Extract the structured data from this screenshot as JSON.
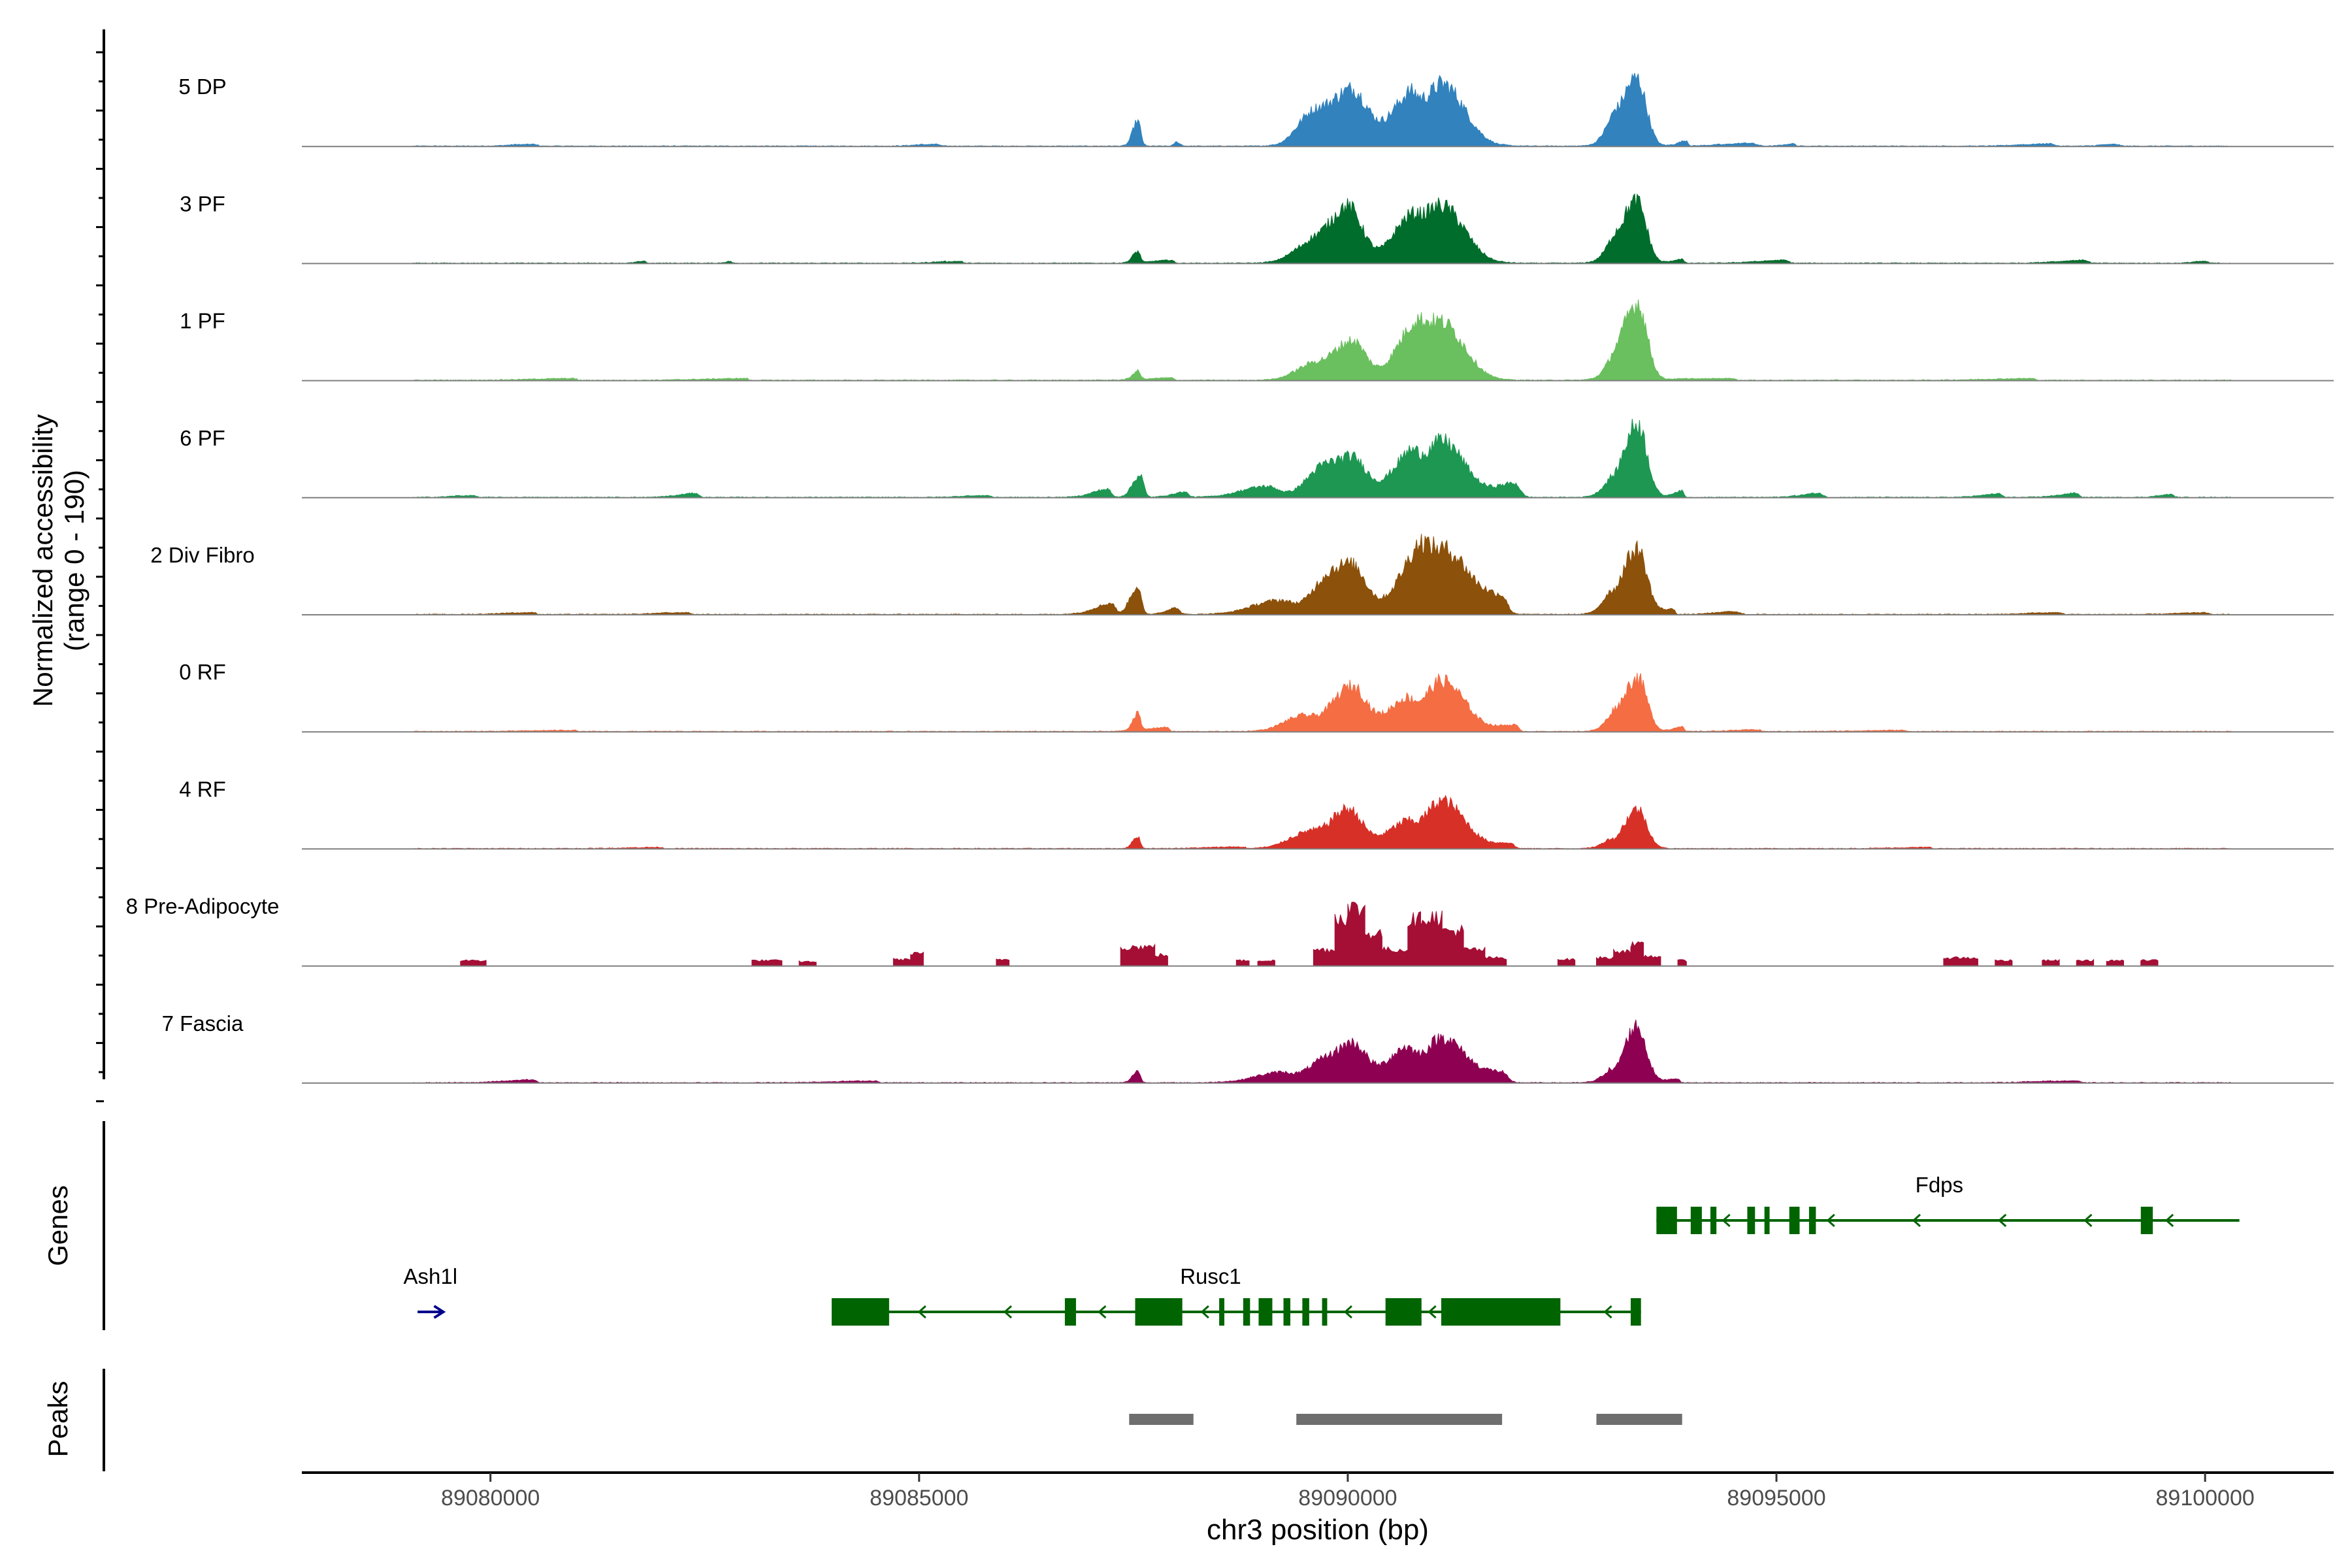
{
  "chart_data": {
    "type": "area",
    "title": "",
    "y_axis_label_line1": "Normalized accessibility",
    "y_axis_label_line2": "(range 0 - 190)",
    "y_range": [
      0,
      190
    ],
    "x_axis_label": "chr3 position (bp)",
    "x_range": [
      89077800,
      89101500
    ],
    "x_ticks": [
      "89080000",
      "89085000",
      "89090000",
      "89095000",
      "89100000"
    ],
    "x_tick_values": [
      89080000,
      89085000,
      89090000,
      89095000,
      89100000
    ],
    "baseline_color": "#7f7f7f",
    "series": [
      {
        "name": "5 DP",
        "color": "#3182bd",
        "mode": "smooth",
        "peaks": [
          [
            89087550,
            60,
            35,
            45
          ],
          [
            89088000,
            25,
            40,
            8
          ],
          [
            89089550,
            170,
            160,
            40
          ],
          [
            89090050,
            280,
            180,
            100
          ],
          [
            89090700,
            220,
            120,
            80
          ],
          [
            89091100,
            200,
            260,
            110
          ],
          [
            89093100,
            110,
            40,
            18
          ],
          [
            89093370,
            190,
            110,
            120
          ],
          [
            89093950,
            100,
            20,
            10
          ],
          [
            89094700,
            300,
            60,
            6
          ],
          [
            89095200,
            100,
            20,
            5
          ],
          [
            89085200,
            200,
            35,
            4
          ],
          [
            89080500,
            220,
            40,
            4
          ],
          [
            89098200,
            300,
            40,
            5
          ],
          [
            89098950,
            140,
            40,
            4
          ]
        ]
      },
      {
        "name": "3 PF",
        "color": "#006d2c",
        "mode": "smooth",
        "peaks": [
          [
            89087550,
            60,
            30,
            20
          ],
          [
            89087950,
            250,
            20,
            6
          ],
          [
            89089550,
            210,
            160,
            30
          ],
          [
            89090000,
            220,
            170,
            100
          ],
          [
            89090700,
            200,
            150,
            70
          ],
          [
            89091100,
            200,
            260,
            100
          ],
          [
            89093100,
            110,
            40,
            12
          ],
          [
            89093370,
            190,
            110,
            110
          ],
          [
            89093900,
            110,
            20,
            8
          ],
          [
            89095100,
            300,
            40,
            6
          ],
          [
            89085500,
            250,
            10,
            4
          ],
          [
            89081800,
            80,
            15,
            4
          ],
          [
            89082800,
            60,
            15,
            3
          ],
          [
            89098600,
            300,
            35,
            6
          ],
          [
            89100000,
            120,
            30,
            4
          ]
        ]
      },
      {
        "name": "1 PF",
        "color": "#6abf5e",
        "mode": "smooth",
        "peaks": [
          [
            89087550,
            60,
            30,
            15
          ],
          [
            89087950,
            300,
            20,
            5
          ],
          [
            89089550,
            200,
            150,
            22
          ],
          [
            89090050,
            240,
            160,
            70
          ],
          [
            89090750,
            210,
            140,
            80
          ],
          [
            89091100,
            200,
            260,
            100
          ],
          [
            89093100,
            110,
            30,
            8
          ],
          [
            89093380,
            190,
            110,
            135
          ],
          [
            89094500,
            600,
            20,
            4
          ],
          [
            89083000,
            500,
            10,
            3
          ],
          [
            89081000,
            500,
            10,
            3
          ],
          [
            89098000,
            500,
            15,
            3
          ]
        ]
      },
      {
        "name": "6 PF",
        "color": "#1d9752",
        "mode": "smooth",
        "peaks": [
          [
            89087200,
            180,
            40,
            15
          ],
          [
            89087580,
            90,
            40,
            40
          ],
          [
            89088100,
            150,
            40,
            10
          ],
          [
            89089050,
            300,
            150,
            20
          ],
          [
            89089650,
            180,
            160,
            35
          ],
          [
            89090050,
            240,
            170,
            70
          ],
          [
            89090700,
            210,
            120,
            65
          ],
          [
            89091100,
            210,
            260,
            100
          ],
          [
            89091950,
            220,
            60,
            25
          ],
          [
            89093050,
            120,
            40,
            14
          ],
          [
            89093380,
            170,
            110,
            130
          ],
          [
            89093900,
            110,
            20,
            12
          ],
          [
            89095500,
            200,
            40,
            8
          ],
          [
            89097600,
            200,
            30,
            7
          ],
          [
            89098500,
            200,
            30,
            8
          ],
          [
            89099600,
            130,
            30,
            6
          ],
          [
            89082400,
            200,
            30,
            8
          ],
          [
            89079800,
            200,
            30,
            4
          ],
          [
            89085800,
            250,
            30,
            4
          ]
        ]
      },
      {
        "name": "2 Div Fibro",
        "color": "#8c510a",
        "mode": "smooth",
        "peaks": [
          [
            89087250,
            200,
            40,
            20
          ],
          [
            89087550,
            90,
            40,
            50
          ],
          [
            89088000,
            120,
            40,
            12
          ],
          [
            89089200,
            320,
            160,
            25
          ],
          [
            89089700,
            170,
            160,
            35
          ],
          [
            89090050,
            240,
            170,
            85
          ],
          [
            89090800,
            230,
            140,
            90
          ],
          [
            89091150,
            220,
            260,
            110
          ],
          [
            89091800,
            250,
            60,
            30
          ],
          [
            89093050,
            110,
            30,
            16
          ],
          [
            89093380,
            190,
            110,
            115
          ],
          [
            89093800,
            150,
            20,
            10
          ],
          [
            89094500,
            200,
            60,
            6
          ],
          [
            89080500,
            300,
            30,
            4
          ],
          [
            89082300,
            300,
            30,
            4
          ],
          [
            89098300,
            300,
            30,
            4
          ],
          [
            89100000,
            300,
            30,
            3
          ]
        ]
      },
      {
        "name": "0 RF",
        "color": "#f46d43",
        "mode": "smooth",
        "peaks": [
          [
            89087550,
            60,
            30,
            30
          ],
          [
            89087900,
            250,
            20,
            8
          ],
          [
            89089450,
            220,
            150,
            25
          ],
          [
            89090050,
            240,
            170,
            80
          ],
          [
            89090650,
            200,
            120,
            50
          ],
          [
            89091100,
            210,
            260,
            90
          ],
          [
            89091950,
            200,
            40,
            12
          ],
          [
            89093100,
            110,
            30,
            12
          ],
          [
            89093380,
            180,
            110,
            95
          ],
          [
            89093900,
            100,
            20,
            10
          ],
          [
            89094800,
            300,
            20,
            3
          ],
          [
            89081000,
            500,
            10,
            2
          ],
          [
            89096500,
            500,
            10,
            2
          ]
        ]
      },
      {
        "name": "4 RF",
        "color": "#d73027",
        "mode": "smooth",
        "peaks": [
          [
            89087550,
            60,
            30,
            22
          ],
          [
            89089500,
            220,
            150,
            25
          ],
          [
            89090000,
            220,
            170,
            70
          ],
          [
            89090650,
            220,
            120,
            40
          ],
          [
            89091100,
            210,
            260,
            85
          ],
          [
            89091900,
            200,
            40,
            10
          ],
          [
            89093050,
            110,
            30,
            10
          ],
          [
            89093380,
            160,
            110,
            70
          ],
          [
            89088800,
            400,
            10,
            3
          ],
          [
            89082000,
            400,
            10,
            2
          ],
          [
            89096800,
            400,
            10,
            2
          ]
        ]
      },
      {
        "name": "8 Pre-Adipocyte",
        "color": "#a50f35",
        "mode": "blocks",
        "blocks": [
          [
            89079650,
            89079950,
            10
          ],
          [
            89083050,
            89083400,
            10
          ],
          [
            89083600,
            89083800,
            8
          ],
          [
            89084700,
            89084900,
            12
          ],
          [
            89084900,
            89085050,
            22
          ],
          [
            89085900,
            89086050,
            12
          ],
          [
            89087350,
            89087750,
            35
          ],
          [
            89087750,
            89087900,
            20
          ],
          [
            89088700,
            89088850,
            10
          ],
          [
            89088950,
            89089150,
            10
          ],
          [
            89089600,
            89089850,
            30
          ],
          [
            89089850,
            89090000,
            90
          ],
          [
            89090000,
            89090200,
            105
          ],
          [
            89090200,
            89090400,
            60
          ],
          [
            89090400,
            89090700,
            30
          ],
          [
            89090700,
            89090850,
            85
          ],
          [
            89090850,
            89091100,
            90
          ],
          [
            89091100,
            89091350,
            65
          ],
          [
            89091350,
            89091600,
            30
          ],
          [
            89091600,
            89091850,
            15
          ],
          [
            89092450,
            89092650,
            12
          ],
          [
            89092900,
            89093100,
            15
          ],
          [
            89093100,
            89093300,
            28
          ],
          [
            89093300,
            89093450,
            38
          ],
          [
            89093450,
            89093650,
            18
          ],
          [
            89093850,
            89093950,
            10
          ],
          [
            89096950,
            89097350,
            15
          ],
          [
            89097550,
            89097750,
            10
          ],
          [
            89098100,
            89098300,
            10
          ],
          [
            89098500,
            89098700,
            10
          ],
          [
            89098850,
            89099050,
            10
          ],
          [
            89099250,
            89099450,
            10
          ]
        ]
      },
      {
        "name": "7 Fascia",
        "color": "#8e0152",
        "mode": "smooth",
        "peaks": [
          [
            89087550,
            60,
            30,
            22
          ],
          [
            89089200,
            300,
            150,
            18
          ],
          [
            89089650,
            180,
            140,
            25
          ],
          [
            89090050,
            220,
            170,
            70
          ],
          [
            89090650,
            200,
            120,
            55
          ],
          [
            89091100,
            210,
            260,
            80
          ],
          [
            89091800,
            250,
            60,
            18
          ],
          [
            89093050,
            110,
            30,
            14
          ],
          [
            89093370,
            150,
            110,
            100
          ],
          [
            89093850,
            150,
            20,
            8
          ],
          [
            89080500,
            300,
            30,
            6
          ],
          [
            89084500,
            500,
            20,
            3
          ],
          [
            89098500,
            400,
            30,
            4
          ]
        ]
      }
    ],
    "genes_label": "Genes",
    "genes": [
      {
        "name": "Fdps",
        "color": "#006400",
        "row": 0,
        "strand": "-",
        "start": 89093600,
        "end": 89100400,
        "label_pos": 89096900,
        "exons": [
          [
            89093600,
            89093840
          ],
          [
            89094000,
            89094130
          ],
          [
            89094230,
            89094300
          ],
          [
            89094660,
            89094750
          ],
          [
            89094860,
            89094920
          ],
          [
            89095150,
            89095270
          ],
          [
            89095380,
            89095460
          ],
          [
            89099250,
            89099390
          ]
        ],
        "arrows": [
          89094380,
          89095600,
          89096600,
          89097600,
          89098600,
          89099550
        ]
      },
      {
        "name": "Rusc1",
        "color": "#006400",
        "row": 1,
        "strand": "-",
        "start": 89083980,
        "end": 89093420,
        "label_pos": 89088400,
        "exons": [
          [
            89083980,
            89084650
          ],
          [
            89086700,
            89086830
          ],
          [
            89087520,
            89088070
          ],
          [
            89088500,
            89088560
          ],
          [
            89088780,
            89088860
          ],
          [
            89088960,
            89089120
          ],
          [
            89089250,
            89089330
          ],
          [
            89089470,
            89089550
          ],
          [
            89089700,
            89089760
          ],
          [
            89090440,
            89090860
          ],
          [
            89091090,
            89092480
          ],
          [
            89093300,
            89093420
          ]
        ],
        "arrows": [
          89085000,
          89086000,
          89087100,
          89088300,
          89089970,
          89090950,
          89093000
        ]
      },
      {
        "name": "Ash1l",
        "color": "#00008b",
        "row": 1,
        "strand": "+",
        "start": 89079150,
        "end": 89079450,
        "label_pos": 89079300,
        "exons": [],
        "arrows": []
      }
    ],
    "peaks_label": "Peaks",
    "peaks_color": "#6e6e6e",
    "peak_regions": [
      [
        89087450,
        89088200
      ],
      [
        89089400,
        89091800
      ],
      [
        89092900,
        89093900
      ]
    ]
  }
}
